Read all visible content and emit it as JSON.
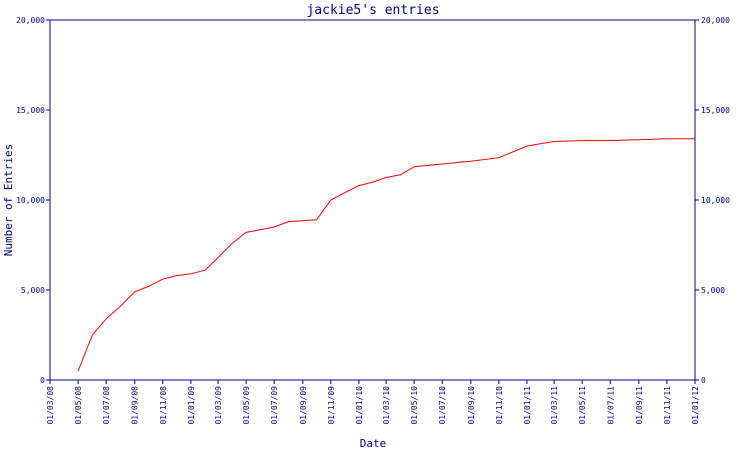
{
  "chart_data": {
    "type": "line",
    "title": "jackie5's entries",
    "xlabel": "Date",
    "ylabel": "Number of Entries",
    "x_range": [
      "2008-03-01",
      "2012-01-01"
    ],
    "ylim": [
      0,
      20000
    ],
    "y_ticks": [
      0,
      5000,
      10000,
      15000,
      20000
    ],
    "y_tick_labels": [
      "0",
      "5,000",
      "10,000",
      "15,000",
      "20,000"
    ],
    "x_ticks": [
      "2008-03-01",
      "2008-05-01",
      "2008-07-01",
      "2008-09-01",
      "2008-11-01",
      "2009-01-01",
      "2009-03-01",
      "2009-05-01",
      "2009-07-01",
      "2009-09-01",
      "2009-11-01",
      "2010-01-01",
      "2010-03-01",
      "2010-05-01",
      "2010-07-01",
      "2010-09-01",
      "2010-11-01",
      "2011-01-01",
      "2011-03-01",
      "2011-05-01",
      "2011-07-01",
      "2011-09-01",
      "2011-11-01",
      "2012-01-01"
    ],
    "x_tick_labels": [
      "01/03/08",
      "01/05/08",
      "01/07/08",
      "01/09/08",
      "01/11/08",
      "01/01/09",
      "01/03/09",
      "01/05/09",
      "01/07/09",
      "01/09/09",
      "01/11/09",
      "01/01/10",
      "01/03/10",
      "01/05/10",
      "01/07/10",
      "01/09/10",
      "01/11/10",
      "01/01/11",
      "01/03/11",
      "01/05/11",
      "01/07/11",
      "01/09/11",
      "01/11/11",
      "01/01/12"
    ],
    "grid": false,
    "series": [
      {
        "color": "#ff0000",
        "points": [
          {
            "x": "2008-05-01",
            "y": 500
          },
          {
            "x": "2008-06-01",
            "y": 2500
          },
          {
            "x": "2008-07-01",
            "y": 3400
          },
          {
            "x": "2008-08-01",
            "y": 4100
          },
          {
            "x": "2008-09-01",
            "y": 4900
          },
          {
            "x": "2008-10-01",
            "y": 5200
          },
          {
            "x": "2008-11-01",
            "y": 5600
          },
          {
            "x": "2008-12-01",
            "y": 5800
          },
          {
            "x": "2009-01-01",
            "y": 5900
          },
          {
            "x": "2009-02-01",
            "y": 6100
          },
          {
            "x": "2009-03-01",
            "y": 6800
          },
          {
            "x": "2009-04-01",
            "y": 7600
          },
          {
            "x": "2009-05-01",
            "y": 8200
          },
          {
            "x": "2009-06-01",
            "y": 8350
          },
          {
            "x": "2009-07-01",
            "y": 8500
          },
          {
            "x": "2009-08-01",
            "y": 8800
          },
          {
            "x": "2009-09-01",
            "y": 8850
          },
          {
            "x": "2009-10-01",
            "y": 8900
          },
          {
            "x": "2009-11-01",
            "y": 10000
          },
          {
            "x": "2009-12-01",
            "y": 10400
          },
          {
            "x": "2010-01-01",
            "y": 10800
          },
          {
            "x": "2010-02-01",
            "y": 11000
          },
          {
            "x": "2010-03-01",
            "y": 11250
          },
          {
            "x": "2010-04-01",
            "y": 11400
          },
          {
            "x": "2010-05-01",
            "y": 11850
          },
          {
            "x": "2010-07-01",
            "y": 12000
          },
          {
            "x": "2010-09-01",
            "y": 12150
          },
          {
            "x": "2010-11-01",
            "y": 12350
          },
          {
            "x": "2011-01-01",
            "y": 13000
          },
          {
            "x": "2011-03-01",
            "y": 13250
          },
          {
            "x": "2011-05-01",
            "y": 13300
          },
          {
            "x": "2011-07-01",
            "y": 13300
          },
          {
            "x": "2011-09-01",
            "y": 13350
          },
          {
            "x": "2011-11-01",
            "y": 13400
          },
          {
            "x": "2012-01-01",
            "y": 13400
          }
        ]
      }
    ],
    "axis_color": "#00008b",
    "line_color": "#ff0000"
  }
}
